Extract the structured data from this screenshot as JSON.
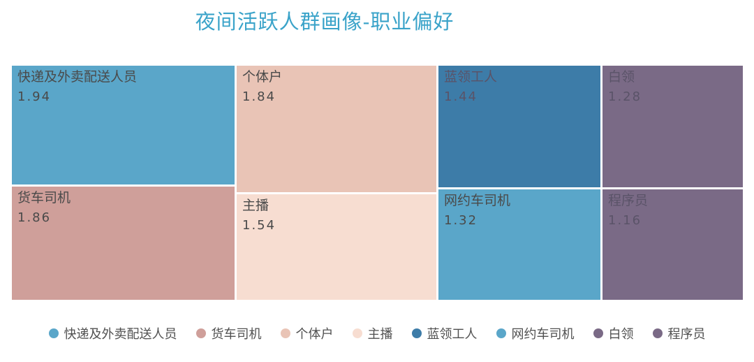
{
  "chart_data": {
    "type": "treemap",
    "title": "夜间活跃人群画像-职业偏好",
    "items": [
      {
        "name": "快递及外卖配送人员",
        "value": 1.94,
        "color": "#5aa6c9"
      },
      {
        "name": "货车司机",
        "value": 1.86,
        "color": "#cf9f9a"
      },
      {
        "name": "个体户",
        "value": 1.84,
        "color": "#e9c4b6"
      },
      {
        "name": "主播",
        "value": 1.54,
        "color": "#f7ddd1"
      },
      {
        "name": "蓝领工人",
        "value": 1.44,
        "color": "#3d7ca8"
      },
      {
        "name": "网约车司机",
        "value": 1.32,
        "color": "#5aa6c9"
      },
      {
        "name": "白领",
        "value": 1.28,
        "color": "#7a6a86"
      },
      {
        "name": "程序员",
        "value": 1.16,
        "color": "#7a6a86"
      }
    ],
    "value_labels": [
      "1.94",
      "1.86",
      "1.84",
      "1.54",
      "1.44",
      "1.32",
      "1.28",
      "1.16"
    ],
    "legend_position": "bottom"
  }
}
